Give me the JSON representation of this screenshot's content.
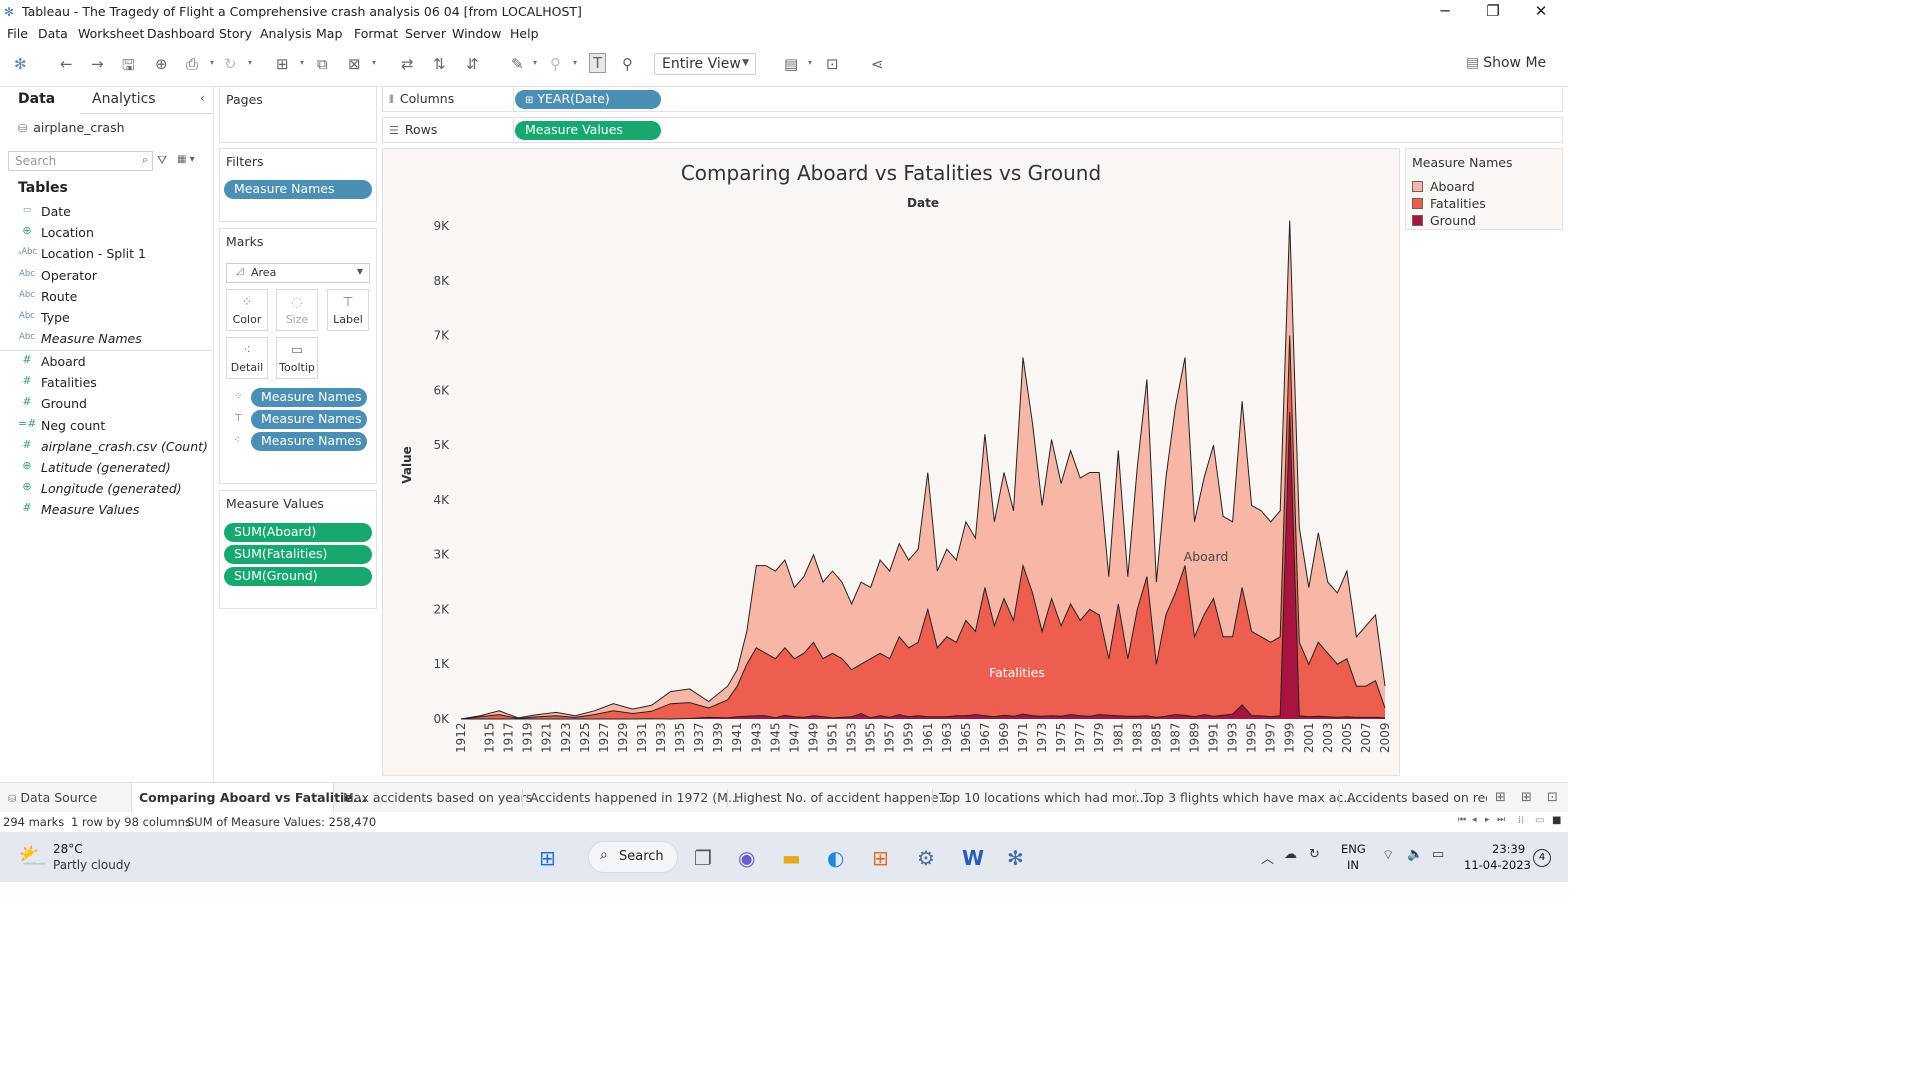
{
  "window": {
    "title": "Tableau - The Tragedy of Flight a Comprehensive crash analysis 06 04 [from LOCALHOST]"
  },
  "menu": [
    "File",
    "Data",
    "Worksheet",
    "Dashboard",
    "Story",
    "Analysis",
    "Map",
    "Format",
    "Server",
    "Window",
    "Help"
  ],
  "toolbar": {
    "fit_value": "Entire View",
    "show_me_label": "Show Me"
  },
  "data_pane": {
    "tab_data": "Data",
    "tab_analytics": "Analytics",
    "datasource": "airplane_crash",
    "search_placeholder": "Search",
    "tables_title": "Tables",
    "dimensions": [
      {
        "type": "date",
        "name": "Date"
      },
      {
        "type": "geo",
        "name": "Location"
      },
      {
        "type": "abc-geo",
        "name": "Location - Split 1"
      },
      {
        "type": "abc",
        "name": "Operator"
      },
      {
        "type": "abc",
        "name": "Route"
      },
      {
        "type": "abc",
        "name": "Type"
      },
      {
        "type": "abc",
        "name": "Measure Names"
      }
    ],
    "measures": [
      {
        "type": "num",
        "name": "Aboard"
      },
      {
        "type": "num",
        "name": "Fatalities"
      },
      {
        "type": "num",
        "name": "Ground"
      },
      {
        "type": "calc",
        "name": "Neg count"
      },
      {
        "type": "num",
        "name": "airplane_crash.csv (Count)"
      },
      {
        "type": "geo",
        "name": "Latitude (generated)"
      },
      {
        "type": "geo",
        "name": "Longitude (generated)"
      },
      {
        "type": "num",
        "name": "Measure Values"
      }
    ]
  },
  "pages": {
    "title": "Pages"
  },
  "filters": {
    "title": "Filters",
    "pill": "Measure Names"
  },
  "marks": {
    "title": "Marks",
    "type": "Area",
    "buttons": {
      "color": "Color",
      "size": "Size",
      "label": "Label",
      "detail": "Detail",
      "tooltip": "Tooltip"
    },
    "pills": [
      "Measure Names",
      "Measure Names",
      "Measure Names"
    ]
  },
  "measure_values": {
    "title": "Measure Values",
    "pills": [
      "SUM(Aboard)",
      "SUM(Fatalities)",
      "SUM(Ground)"
    ]
  },
  "columns": {
    "label": "Columns",
    "pill": "YEAR(Date)"
  },
  "rows": {
    "label": "Rows",
    "pill": "Measure Values"
  },
  "legend": {
    "title": "Measure Names",
    "items": [
      {
        "name": "Aboard",
        "color": "#f8b7a6"
      },
      {
        "name": "Fatalities",
        "color": "#ee5e4f"
      },
      {
        "name": "Ground",
        "color": "#a8143f"
      }
    ]
  },
  "chart_data": {
    "type": "area",
    "title": "Comparing Aboard vs Fatalities vs Ground",
    "xlabel": "Date",
    "ylabel": "Value",
    "ylim": [
      0,
      9000
    ],
    "yticks": [
      0,
      1000,
      2000,
      3000,
      4000,
      5000,
      6000,
      7000,
      8000,
      9000
    ],
    "ytick_labels": [
      "0K",
      "1K",
      "2K",
      "3K",
      "4K",
      "5K",
      "6K",
      "7K",
      "8K",
      "9K"
    ],
    "xtick_labels": [
      "1912",
      "1915",
      "1917",
      "1919",
      "1921",
      "1923",
      "1925",
      "1927",
      "1929",
      "1931",
      "1933",
      "1935",
      "1937",
      "1939",
      "1941",
      "1943",
      "1945",
      "1947",
      "1949",
      "1951",
      "1953",
      "1955",
      "1957",
      "1959",
      "1961",
      "1963",
      "1965",
      "1967",
      "1969",
      "1971",
      "1973",
      "1975",
      "1977",
      "1979",
      "1981",
      "1983",
      "1985",
      "1987",
      "1989",
      "1991",
      "1993",
      "1995",
      "1997",
      "1999",
      "2001",
      "2003",
      "2005",
      "2007",
      "2009"
    ],
    "x": [
      1912,
      1914,
      1916,
      1918,
      1920,
      1922,
      1924,
      1926,
      1928,
      1930,
      1932,
      1934,
      1936,
      1938,
      1940,
      1941,
      1942,
      1943,
      1944,
      1945,
      1946,
      1947,
      1948,
      1949,
      1950,
      1951,
      1952,
      1953,
      1954,
      1955,
      1956,
      1957,
      1958,
      1959,
      1960,
      1961,
      1962,
      1963,
      1964,
      1965,
      1966,
      1967,
      1968,
      1969,
      1970,
      1971,
      1972,
      1973,
      1974,
      1975,
      1976,
      1977,
      1978,
      1979,
      1980,
      1981,
      1982,
      1983,
      1984,
      1985,
      1986,
      1987,
      1988,
      1989,
      1990,
      1991,
      1992,
      1993,
      1994,
      1995,
      1996,
      1997,
      1998,
      1999,
      2000,
      2001,
      2002,
      2003,
      2004,
      2005,
      2006,
      2007,
      2008,
      2009
    ],
    "series": [
      {
        "name": "Aboard",
        "values": [
          0,
          60,
          150,
          20,
          80,
          120,
          60,
          150,
          280,
          180,
          250,
          500,
          550,
          320,
          600,
          900,
          1600,
          2800,
          2800,
          2700,
          2900,
          2400,
          2600,
          3000,
          2500,
          2700,
          2500,
          2100,
          2500,
          2400,
          2900,
          2700,
          3200,
          2900,
          3100,
          4500,
          2700,
          3100,
          2900,
          3600,
          3300,
          5200,
          3600,
          4500,
          3800,
          6600,
          5400,
          3900,
          5100,
          4300,
          4900,
          4400,
          4500,
          4500,
          2600,
          4900,
          2600,
          4600,
          6200,
          2500,
          4400,
          5700,
          6600,
          3600,
          4400,
          5000,
          3700,
          3600,
          5800,
          3900,
          3800,
          3600,
          3800,
          9100,
          3500,
          2400,
          3400,
          2500,
          2300,
          2700,
          1500,
          1700,
          1900,
          600
        ]
      },
      {
        "name": "Fatalities",
        "values": [
          0,
          40,
          80,
          10,
          40,
          60,
          30,
          80,
          150,
          100,
          140,
          280,
          300,
          200,
          350,
          600,
          1000,
          1300,
          1200,
          1100,
          1300,
          1100,
          1200,
          1400,
          1100,
          1200,
          1100,
          900,
          1000,
          1100,
          1200,
          1100,
          1500,
          1300,
          1400,
          2000,
          1300,
          1500,
          1400,
          1800,
          1600,
          2400,
          1700,
          2200,
          1800,
          2800,
          2300,
          1600,
          2200,
          1700,
          2100,
          1800,
          2000,
          1900,
          1100,
          2100,
          1100,
          2000,
          2600,
          1000,
          1900,
          2300,
          2800,
          1500,
          1900,
          2200,
          1500,
          1500,
          2400,
          1600,
          1500,
          1400,
          1500,
          7000,
          1400,
          1000,
          1400,
          1200,
          1000,
          1100,
          600,
          600,
          700,
          200
        ]
      },
      {
        "name": "Ground",
        "values": [
          0,
          0,
          0,
          0,
          0,
          0,
          0,
          0,
          0,
          0,
          5,
          0,
          10,
          30,
          20,
          40,
          50,
          60,
          60,
          20,
          70,
          40,
          30,
          60,
          40,
          20,
          30,
          40,
          100,
          20,
          60,
          30,
          80,
          40,
          60,
          40,
          40,
          40,
          60,
          60,
          80,
          60,
          40,
          70,
          50,
          90,
          60,
          50,
          60,
          50,
          80,
          60,
          50,
          80,
          70,
          60,
          50,
          50,
          60,
          30,
          50,
          80,
          70,
          40,
          80,
          50,
          70,
          90,
          260,
          60,
          60,
          40,
          60,
          5600,
          60,
          40,
          50,
          40,
          30,
          40,
          30,
          30,
          30,
          20
        ]
      }
    ],
    "annotations": [
      "Aboard",
      "Fatalities"
    ],
    "grid": false,
    "legend": "right"
  },
  "sheet_tabs": {
    "data_source": "Data Source",
    "tabs": [
      "Comparing Aboard vs Fatalitie...",
      "Max accidents based on years",
      "Accidents happened in 1972 (M...",
      "Highest No. of accident happene...",
      "Top 10 locations which had mor...",
      "Top 3 flights which have max ac...",
      "Accidents based on regio"
    ]
  },
  "status": {
    "marks": "294 marks",
    "dims": "1 row by 98 columns",
    "sum": "SUM of Measure Values: 258,470"
  },
  "taskbar": {
    "weather_temp": "28°C",
    "weather_desc": "Partly cloudy",
    "search_label": "Search",
    "lang_top": "ENG",
    "lang_bottom": "IN",
    "time": "23:39",
    "date": "11-04-2023",
    "notif_count": "4"
  }
}
